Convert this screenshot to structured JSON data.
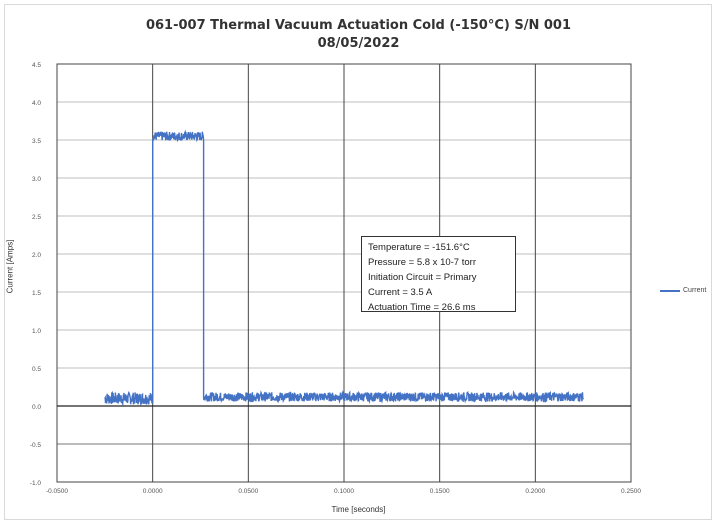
{
  "chart_data": {
    "type": "line",
    "title": "061-007 Thermal Vacuum Actuation Cold (-150°C) S/N 001",
    "subtitle": "08/05/2022",
    "xlabel": "Time [seconds]",
    "ylabel": "Current [Amps]",
    "xlim": [
      -0.05,
      0.25
    ],
    "ylim": [
      -1.0,
      4.5
    ],
    "x_ticks": [
      "-0.0500",
      "0.0000",
      "0.0500",
      "0.1000",
      "0.1500",
      "0.2000",
      "0.2500"
    ],
    "y_ticks": [
      "4.5",
      "4.0",
      "3.5",
      "3.0",
      "2.5",
      "2.0",
      "1.5",
      "1.0",
      "0.5",
      "0.0",
      "-0.5",
      "-1.0"
    ],
    "grid": true,
    "legend_position": "right",
    "series": [
      {
        "name": "Current",
        "color": "#4472c4",
        "segments": [
          {
            "x_start": -0.025,
            "x_end": 0.0,
            "level": 0.1,
            "noise": 0.08
          },
          {
            "x_start": 0.0,
            "x_end": 0.0266,
            "level": 3.55,
            "noise": 0.06
          },
          {
            "x_start": 0.0266,
            "x_end": 0.225,
            "level": 0.12,
            "noise": 0.06
          }
        ]
      }
    ],
    "annotation": [
      "Temperature = -151.6°C",
      "Pressure = 5.8 x 10-7 torr",
      "Initiation Circuit = Primary",
      "Current = 3.5 A",
      "Actuation Time = 26.6 ms"
    ]
  }
}
